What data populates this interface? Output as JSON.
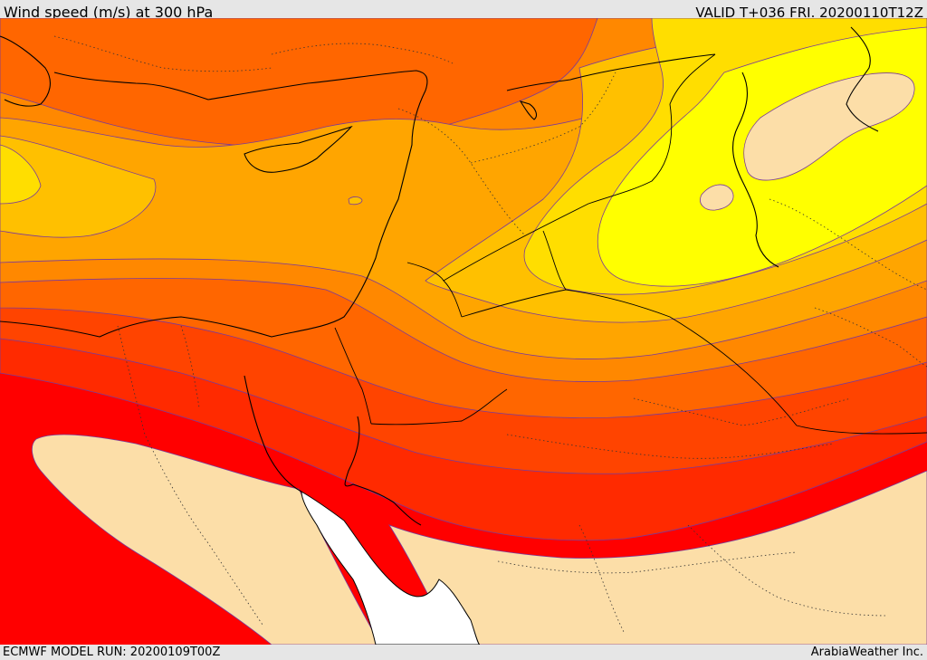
{
  "header": {
    "title_left": "Wind speed (m/s) at 300 hPa",
    "title_right": "VALID T+036 FRI. 20200110T12Z"
  },
  "footer": {
    "model_run": "ECMWF MODEL RUN: 20200109T00Z",
    "credit": "ArabiaWeather Inc."
  },
  "colors": {
    "band_1": "#ffff00",
    "band_2": "#ffde00",
    "band_3": "#ffc000",
    "band_4": "#ffa500",
    "band_5": "#ff8800",
    "band_6": "#ff6600",
    "band_7": "#ff4400",
    "band_8": "#ff2a00",
    "band_9": "#ff0000",
    "band_low": "#fcdea8",
    "sea": "#ffffff"
  }
}
